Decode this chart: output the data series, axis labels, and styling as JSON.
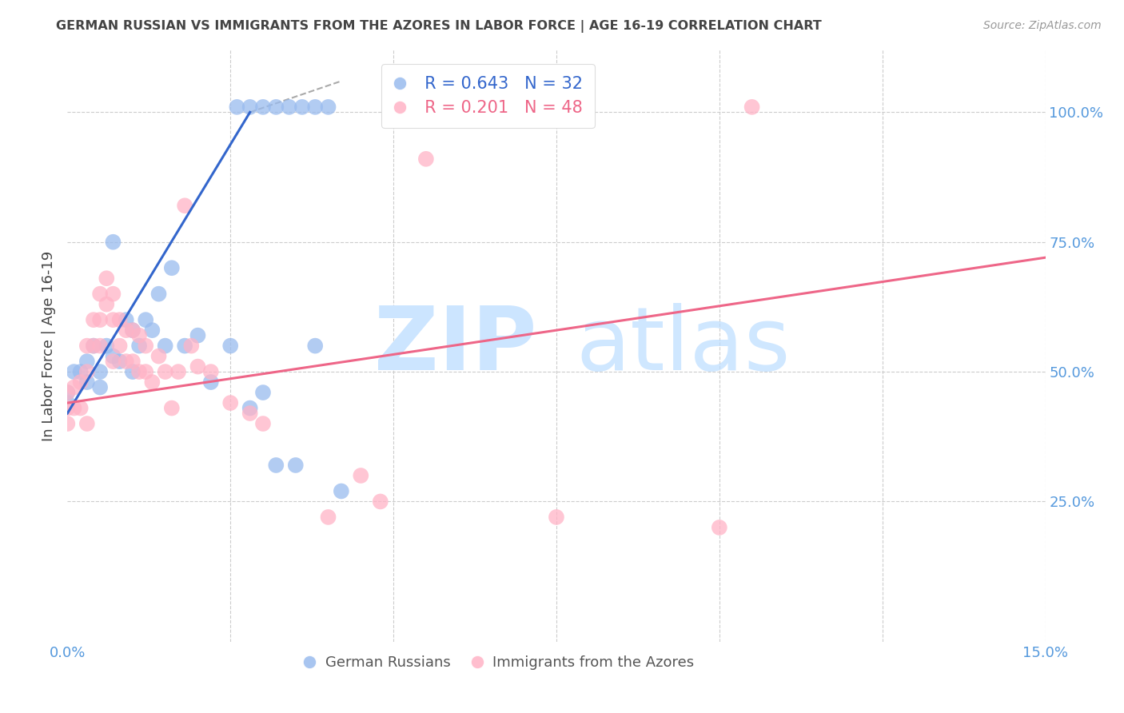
{
  "title": "GERMAN RUSSIAN VS IMMIGRANTS FROM THE AZORES IN LABOR FORCE | AGE 16-19 CORRELATION CHART",
  "source": "Source: ZipAtlas.com",
  "ylabel": "In Labor Force | Age 16-19",
  "xlim": [
    0.0,
    0.15
  ],
  "ylim": [
    -0.02,
    1.12
  ],
  "xticks": [
    0.0,
    0.025,
    0.05,
    0.075,
    0.1,
    0.125,
    0.15
  ],
  "yticks_right": [
    0.25,
    0.5,
    0.75,
    1.0
  ],
  "ytick_right_labels": [
    "25.0%",
    "50.0%",
    "75.0%",
    "100.0%"
  ],
  "blue_color": "#99BBEE",
  "pink_color": "#FFB3C6",
  "blue_line_color": "#3366CC",
  "pink_line_color": "#EE6688",
  "legend_blue_r": "R = 0.643",
  "legend_blue_n": "N = 32",
  "legend_pink_r": "R = 0.201",
  "legend_pink_n": "N = 48",
  "grid_color": "#CCCCCC",
  "axis_label_color": "#5599DD",
  "title_color": "#444444",
  "blue_scatter_x": [
    0.0,
    0.0,
    0.001,
    0.002,
    0.003,
    0.003,
    0.004,
    0.005,
    0.005,
    0.006,
    0.007,
    0.007,
    0.008,
    0.009,
    0.01,
    0.01,
    0.011,
    0.012,
    0.013,
    0.014,
    0.015,
    0.016,
    0.018,
    0.02,
    0.022,
    0.025,
    0.028,
    0.03,
    0.032,
    0.035,
    0.038,
    0.042
  ],
  "blue_scatter_y": [
    0.46,
    0.44,
    0.5,
    0.5,
    0.52,
    0.48,
    0.55,
    0.5,
    0.47,
    0.55,
    0.75,
    0.53,
    0.52,
    0.6,
    0.58,
    0.5,
    0.55,
    0.6,
    0.58,
    0.65,
    0.55,
    0.7,
    0.55,
    0.57,
    0.48,
    0.55,
    0.43,
    0.46,
    0.32,
    0.32,
    0.55,
    0.27
  ],
  "pink_scatter_x": [
    0.0,
    0.0,
    0.0,
    0.001,
    0.001,
    0.002,
    0.002,
    0.003,
    0.003,
    0.003,
    0.004,
    0.004,
    0.005,
    0.005,
    0.005,
    0.006,
    0.006,
    0.007,
    0.007,
    0.007,
    0.008,
    0.008,
    0.009,
    0.009,
    0.01,
    0.01,
    0.011,
    0.011,
    0.012,
    0.012,
    0.013,
    0.014,
    0.015,
    0.016,
    0.017,
    0.018,
    0.019,
    0.02,
    0.022,
    0.025,
    0.028,
    0.03,
    0.04,
    0.045,
    0.048,
    0.055,
    0.075,
    0.1
  ],
  "pink_scatter_y": [
    0.46,
    0.43,
    0.4,
    0.47,
    0.43,
    0.48,
    0.43,
    0.55,
    0.5,
    0.4,
    0.6,
    0.55,
    0.65,
    0.6,
    0.55,
    0.68,
    0.63,
    0.65,
    0.6,
    0.52,
    0.6,
    0.55,
    0.58,
    0.52,
    0.58,
    0.52,
    0.57,
    0.5,
    0.55,
    0.5,
    0.48,
    0.53,
    0.5,
    0.43,
    0.5,
    0.82,
    0.55,
    0.51,
    0.5,
    0.44,
    0.42,
    0.4,
    0.22,
    0.3,
    0.25,
    0.91,
    0.22,
    0.2
  ],
  "blue_line_x": [
    0.0,
    0.028
  ],
  "blue_line_y": [
    0.42,
    1.0
  ],
  "pink_line_x": [
    0.0,
    0.15
  ],
  "pink_line_y": [
    0.44,
    0.72
  ],
  "dashed_line_x": [
    0.028,
    0.042
  ],
  "dashed_line_y": [
    1.0,
    1.06
  ],
  "blue_top_dots_x": [
    0.026,
    0.028,
    0.03,
    0.032,
    0.034,
    0.036,
    0.038,
    0.04
  ],
  "blue_top_dots_y": [
    1.01,
    1.01,
    1.01,
    1.01,
    1.01,
    1.01,
    1.01,
    1.01
  ],
  "pink_top_dot_x": [
    0.105
  ],
  "pink_top_dot_y": [
    1.01
  ]
}
